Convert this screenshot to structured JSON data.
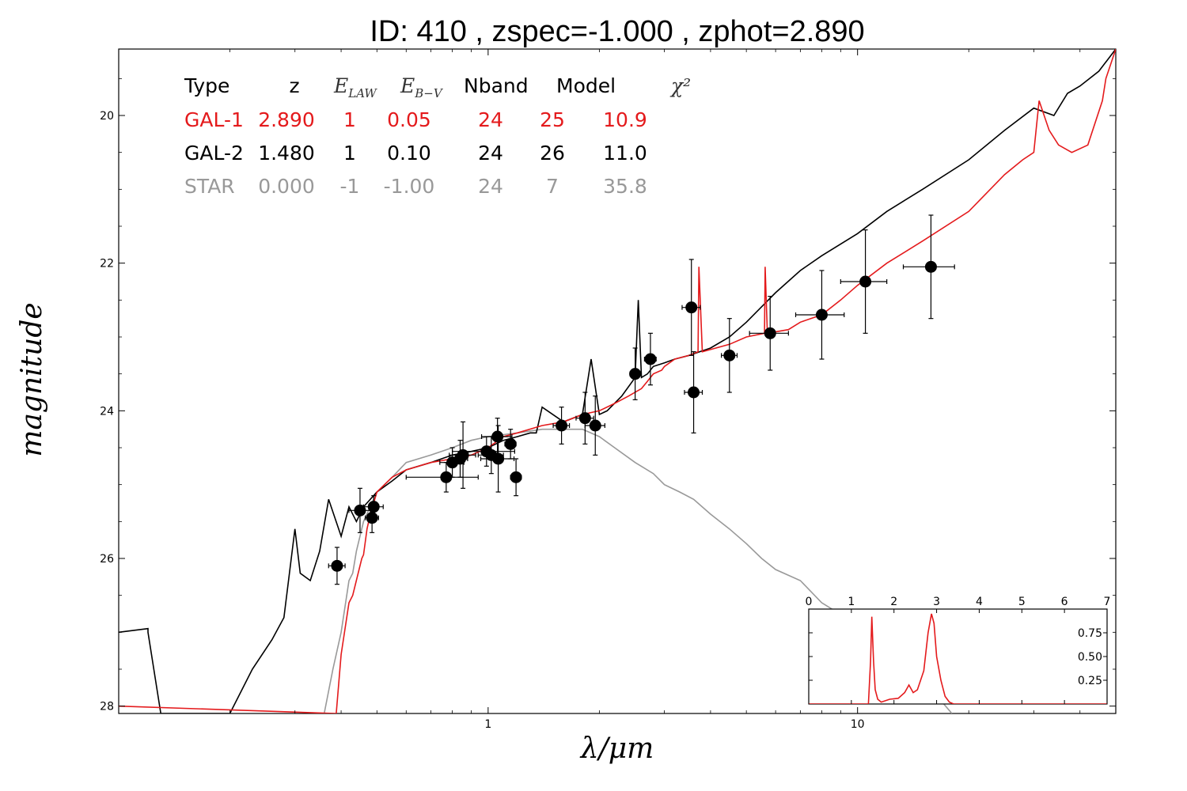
{
  "title": "ID:  410   , zspec=-1.000 , zphot=2.890",
  "colors": {
    "gal1": "#e41a1c",
    "gal2": "#000000",
    "star": "#999999"
  },
  "table": {
    "headers": [
      "Type",
      "z",
      "E_LAW",
      "E_B-V",
      "Nband",
      "Model",
      "χ²"
    ],
    "rows": [
      {
        "name": "GAL-1",
        "color": "#e41a1c",
        "cells": [
          "GAL-1",
          "2.890",
          "1",
          "0.05",
          "24",
          "25",
          "10.9"
        ]
      },
      {
        "name": "GAL-2",
        "color": "#000000",
        "cells": [
          "GAL-2",
          "1.480",
          "1",
          "0.10",
          "24",
          "26",
          "11.0"
        ]
      },
      {
        "name": "STAR",
        "color": "#999999",
        "cells": [
          "STAR",
          "0.000",
          "-1",
          "-1.00",
          "24",
          "7",
          "35.8"
        ]
      }
    ]
  },
  "chart_data": [
    {
      "type": "scatter",
      "title": "ID:  410   , zspec=-1.000 , zphot=2.890",
      "xlabel": "λ/μm",
      "ylabel": "magnitude",
      "xscale": "log",
      "xlim": [
        0.1,
        50
      ],
      "ylim": [
        28.1,
        19.1
      ],
      "x_ticks": [
        1,
        10
      ],
      "x_tick_labels": [
        "1",
        "10"
      ],
      "y_ticks": [
        20,
        22,
        24,
        26,
        28
      ],
      "y_tick_labels": [
        "20",
        "22",
        "24",
        "26",
        "28"
      ],
      "grid": false,
      "points": [
        {
          "x": 0.39,
          "y": 26.1,
          "xerr": 0.02,
          "yerr": 0.25
        },
        {
          "x": 0.45,
          "y": 25.35,
          "xerr": 0.03,
          "yerr": 0.3
        },
        {
          "x": 0.49,
          "y": 25.3,
          "xerr": 0.03,
          "yerr": 0.15
        },
        {
          "x": 0.485,
          "y": 25.45,
          "xerr": 0.02,
          "yerr": 0.2
        },
        {
          "x": 0.77,
          "y": 24.9,
          "xerr": 0.17,
          "yerr": 0.2
        },
        {
          "x": 0.8,
          "y": 24.7,
          "xerr": 0.06,
          "yerr": 0.2
        },
        {
          "x": 0.855,
          "y": 24.6,
          "xerr": 0.07,
          "yerr": 0.45
        },
        {
          "x": 0.84,
          "y": 24.65,
          "xerr": 0.04,
          "yerr": 0.25
        },
        {
          "x": 0.99,
          "y": 24.55,
          "xerr": 0.19,
          "yerr": 0.2
        },
        {
          "x": 1.02,
          "y": 24.6,
          "xerr": 0.08,
          "yerr": 0.25
        },
        {
          "x": 1.06,
          "y": 24.35,
          "xerr": 0.1,
          "yerr": 0.25
        },
        {
          "x": 1.065,
          "y": 24.65,
          "xerr": 0.11,
          "yerr": 0.45
        },
        {
          "x": 1.15,
          "y": 24.45,
          "xerr": 0.04,
          "yerr": 0.2
        },
        {
          "x": 1.19,
          "y": 24.9,
          "xerr": 0.04,
          "yerr": 0.25
        },
        {
          "x": 1.58,
          "y": 24.2,
          "xerr": 0.08,
          "yerr": 0.25
        },
        {
          "x": 1.83,
          "y": 24.1,
          "xerr": 0.1,
          "yerr": 0.35
        },
        {
          "x": 1.95,
          "y": 24.2,
          "xerr": 0.12,
          "yerr": 0.4
        },
        {
          "x": 2.5,
          "y": 23.5,
          "xerr": 0.08,
          "yerr": 0.35
        },
        {
          "x": 2.75,
          "y": 23.3,
          "xerr": 0.1,
          "yerr": 0.35
        },
        {
          "x": 3.55,
          "y": 22.6,
          "xerr": 0.2,
          "yerr": 0.65
        },
        {
          "x": 4.5,
          "y": 23.25,
          "xerr": 0.22,
          "yerr": 0.5
        },
        {
          "x": 3.6,
          "y": 23.75,
          "xerr": 0.2,
          "yerr": 0.55
        },
        {
          "x": 5.8,
          "y": 22.95,
          "xerr": 0.7,
          "yerr": 0.5
        },
        {
          "x": 8.0,
          "y": 22.7,
          "xerr": 1.2,
          "yerr": 0.6
        },
        {
          "x": 10.5,
          "y": 22.25,
          "xerr": 1.5,
          "yerr": 0.7
        },
        {
          "x": 15.8,
          "y": 22.05,
          "xerr": 2.5,
          "yerr": 0.7
        }
      ],
      "series": [
        {
          "name": "GAL-1",
          "color": "#e41a1c",
          "x": [
            0.1,
            0.388,
            0.4,
            0.42,
            0.43,
            0.455,
            0.46,
            0.47,
            0.48,
            0.5,
            0.55,
            0.6,
            0.7,
            0.8,
            0.9,
            1.0,
            1.1,
            1.2,
            1.4,
            1.6,
            1.8,
            2.0,
            2.2,
            2.4,
            2.6,
            2.7,
            2.8,
            2.95,
            3.0,
            3.2,
            3.5,
            3.7,
            3.72,
            3.8,
            4.5,
            5.0,
            5.6,
            5.62,
            5.7,
            6.5,
            7.0,
            8.0,
            9.0,
            10,
            12,
            15,
            20,
            25,
            28,
            30,
            31,
            33,
            35,
            38,
            42,
            46,
            47,
            50
          ],
          "y": [
            28.0,
            28.1,
            27.3,
            26.6,
            26.5,
            26.0,
            25.95,
            25.6,
            25.4,
            25.1,
            24.9,
            24.8,
            24.7,
            24.65,
            24.6,
            24.5,
            24.35,
            24.3,
            24.2,
            24.15,
            24.05,
            24.0,
            23.9,
            23.8,
            23.7,
            23.6,
            23.5,
            23.45,
            23.4,
            23.3,
            23.25,
            23.2,
            22.05,
            23.2,
            23.1,
            23.0,
            22.95,
            22.05,
            22.95,
            22.9,
            22.8,
            22.7,
            22.5,
            22.3,
            22.0,
            21.7,
            21.3,
            20.8,
            20.6,
            20.5,
            19.8,
            20.2,
            20.4,
            20.5,
            20.4,
            19.8,
            19.5,
            19.1
          ]
        },
        {
          "name": "GAL-2",
          "color": "#000000",
          "x": [
            0.1,
            0.12,
            0.12,
            0.13,
            0.14,
            0.2,
            0.23,
            0.26,
            0.28,
            0.3,
            0.31,
            0.33,
            0.35,
            0.37,
            0.4,
            0.42,
            0.44,
            0.46,
            0.5,
            0.55,
            0.6,
            0.7,
            0.8,
            0.9,
            1.0,
            1.1,
            1.2,
            1.3,
            1.35,
            1.4,
            1.6,
            1.8,
            1.9,
            2.0,
            2.1,
            2.3,
            2.5,
            2.55,
            2.6,
            2.7,
            2.8,
            3.0,
            3.2,
            3.5,
            4.0,
            4.5,
            5.0,
            6.0,
            7.0,
            8.0,
            10,
            12,
            15,
            20,
            25,
            30,
            34,
            37,
            40,
            45,
            50
          ],
          "y": [
            27.0,
            26.95,
            27.0,
            28.1,
            28.1,
            28.1,
            27.5,
            27.1,
            26.8,
            25.6,
            26.2,
            26.3,
            25.9,
            25.2,
            25.7,
            25.3,
            25.5,
            25.3,
            25.1,
            24.95,
            24.8,
            24.7,
            24.6,
            24.55,
            24.5,
            24.4,
            24.35,
            24.3,
            24.3,
            23.95,
            24.15,
            24.05,
            23.3,
            24.05,
            24.0,
            23.8,
            23.55,
            22.5,
            23.55,
            23.5,
            23.4,
            23.35,
            23.3,
            23.25,
            23.15,
            23.0,
            22.8,
            22.4,
            22.1,
            21.9,
            21.6,
            21.3,
            21.0,
            20.6,
            20.2,
            19.9,
            20.0,
            19.7,
            19.6,
            19.4,
            19.1
          ]
        },
        {
          "name": "STAR",
          "color": "#999999",
          "x": [
            0.36,
            0.38,
            0.4,
            0.42,
            0.43,
            0.44,
            0.46,
            0.5,
            0.55,
            0.6,
            0.7,
            0.8,
            0.9,
            1.0,
            1.2,
            1.4,
            1.6,
            1.8,
            2.0,
            2.2,
            2.5,
            2.8,
            3.0,
            3.3,
            3.6,
            4.0,
            4.5,
            5.0,
            5.5,
            6.0,
            7.0,
            8.0,
            10,
            12,
            14,
            16,
            18
          ],
          "y": [
            28.1,
            27.5,
            27.0,
            26.3,
            26.2,
            25.9,
            25.5,
            25.1,
            24.9,
            24.7,
            24.6,
            24.5,
            24.4,
            24.35,
            24.3,
            24.25,
            24.25,
            24.25,
            24.35,
            24.5,
            24.7,
            24.85,
            25.0,
            25.1,
            25.2,
            25.4,
            25.6,
            25.8,
            26.0,
            26.15,
            26.3,
            26.6,
            26.9,
            27.2,
            27.5,
            27.8,
            28.1
          ]
        }
      ]
    },
    {
      "type": "line",
      "title": "",
      "xlabel": "",
      "ylabel": "",
      "xlim": [
        0,
        7
      ],
      "ylim": [
        0,
        1.0
      ],
      "x_ticks": [
        0,
        1,
        2,
        3,
        4,
        5,
        6,
        7
      ],
      "x_tick_labels": [
        "0",
        "1",
        "2",
        "3",
        "4",
        "5",
        "6",
        "7"
      ],
      "y_ticks": [
        0.25,
        0.5,
        0.75
      ],
      "y_tick_labels": [
        "0.25",
        "0.50",
        "0.75"
      ],
      "grid": false,
      "series": [
        {
          "name": "",
          "color": "#e41a1c",
          "x": [
            0,
            1.4,
            1.45,
            1.48,
            1.52,
            1.56,
            1.62,
            1.7,
            1.9,
            2.1,
            2.25,
            2.35,
            2.45,
            2.55,
            2.7,
            2.8,
            2.88,
            2.94,
            3.0,
            3.1,
            3.2,
            3.3,
            3.4,
            7.0
          ],
          "y": [
            0,
            0.0,
            0.45,
            0.92,
            0.45,
            0.15,
            0.05,
            0.02,
            0.05,
            0.06,
            0.12,
            0.2,
            0.12,
            0.15,
            0.35,
            0.75,
            0.95,
            0.85,
            0.5,
            0.25,
            0.08,
            0.02,
            0.0,
            0.0
          ]
        }
      ]
    }
  ]
}
